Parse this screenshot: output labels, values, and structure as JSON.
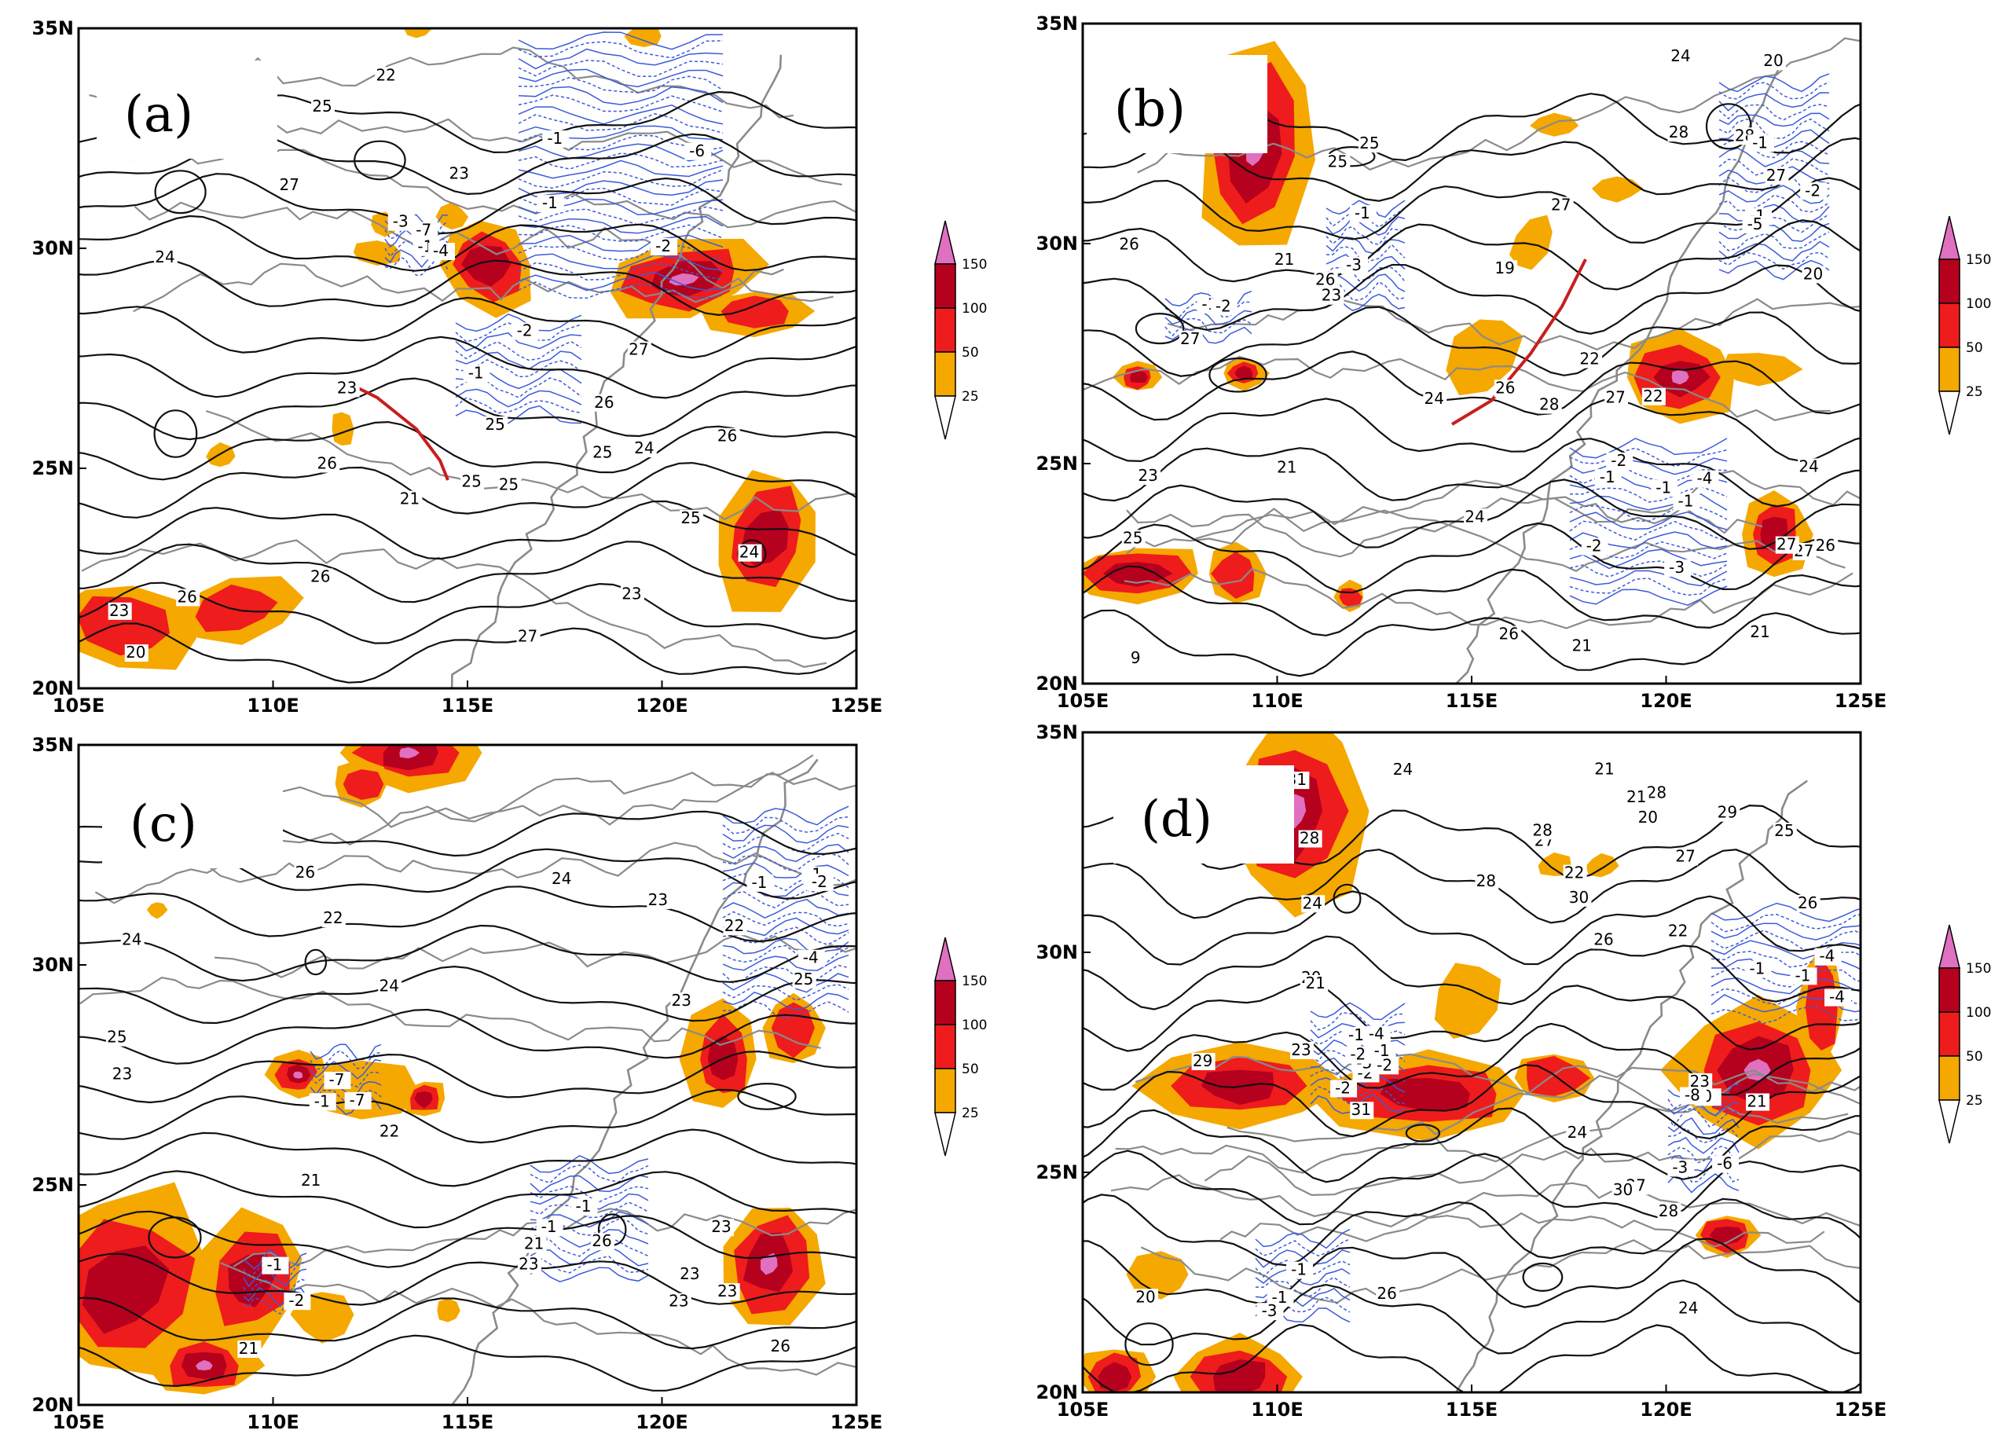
{
  "panels": [
    {
      "id": "a",
      "label": "(a)",
      "black_labels": [
        "27",
        "26",
        "25",
        "24",
        "23",
        "23",
        "23",
        "25",
        "24",
        "26",
        "25",
        "24",
        "26",
        "25",
        "26",
        "25",
        "24",
        "22",
        "23",
        "21",
        "20",
        "25",
        "27",
        "26",
        "25",
        "27",
        "26"
      ],
      "blue_labels": [
        "-1",
        "-1",
        "-1",
        "-2",
        "-3",
        "-4",
        "-6",
        "-7",
        "-2",
        "-1"
      ],
      "cyclone_axis": true
    },
    {
      "id": "b",
      "label": "(b)",
      "black_labels": [
        "9",
        "19",
        "20",
        "21",
        "21",
        "23",
        "20",
        "21",
        "22",
        "24",
        "22",
        "25",
        "26",
        "27",
        "26",
        "27",
        "28",
        "28",
        "27",
        "27",
        "27",
        "25",
        "26",
        "24",
        "24",
        "23",
        "21",
        "24",
        "26",
        "27",
        "28",
        "26",
        "25"
      ],
      "blue_labels": [
        "-1",
        "-1",
        "-2",
        "-3",
        "-1",
        "-1",
        "-2",
        "-5",
        "-1",
        "-4",
        "-2",
        "-1",
        "-2",
        "-3",
        "-1"
      ],
      "cyclone_axis": true
    },
    {
      "id": "c",
      "label": "(c)",
      "black_labels": [
        "23",
        "26",
        "25",
        "24",
        "23",
        "21",
        "23",
        "22",
        "23",
        "21",
        "22",
        "23",
        "22",
        "21",
        "22",
        "23",
        "24",
        "23",
        "23",
        "26",
        "24",
        "23",
        "25",
        "26",
        "23"
      ],
      "blue_labels": [
        "-1",
        "-1",
        "-1",
        "-2",
        "-7",
        "-4",
        "-7",
        "-1",
        "-1",
        "-1",
        "-2"
      ],
      "cyclone_axis": false
    },
    {
      "id": "d",
      "label": "(d)",
      "black_labels": [
        "21",
        "20",
        "20",
        "21",
        "23",
        "22",
        "28",
        "26",
        "31",
        "30",
        "28",
        "27",
        "21",
        "24",
        "25",
        "26",
        "28",
        "29",
        "29",
        "28",
        "27",
        "24",
        "23",
        "22",
        "24",
        "31",
        "30",
        "20",
        "21",
        "24",
        "26",
        "27",
        "28"
      ],
      "blue_labels": [
        "-1",
        "-3",
        "0",
        "-1",
        "-1",
        "-4",
        "-2",
        "-4",
        "-6",
        "-8",
        "-1",
        "-2",
        "-3",
        "-4",
        "-2",
        "-1",
        "-1",
        "-2",
        "-3"
      ],
      "cyclone_axis": false
    }
  ],
  "axes": {
    "x_ticks": [
      "105E",
      "110E",
      "115E",
      "120E",
      "125E"
    ],
    "y_ticks": [
      "20N",
      "25N",
      "30N",
      "35N"
    ]
  },
  "colorbar": {
    "levels": [
      "25",
      "50",
      "100",
      "150"
    ],
    "colors": [
      "#f5a800",
      "#ee1c1c",
      "#b5001e",
      "#e070c0"
    ],
    "undershoot_color": "#ffffff"
  },
  "colors": {
    "black_contour": "#111111",
    "blue_contour": "#3b5bdb",
    "coastline": "#8a8a8a",
    "cyclone_axis": "#c81e1e"
  }
}
